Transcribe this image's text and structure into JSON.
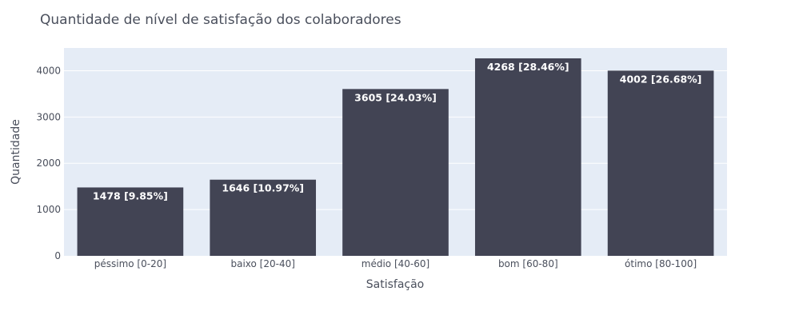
{
  "chart_data": {
    "type": "bar",
    "title": "Quantidade de nível de satisfação dos colaboradores",
    "xlabel": "Satisfação",
    "ylabel": "Quantidade",
    "categories": [
      "péssimo [0-20]",
      "baixo [20-40]",
      "médio [40-60]",
      "bom [60-80]",
      "ótimo [80-100]"
    ],
    "values": [
      1478,
      1646,
      3605,
      4268,
      4002
    ],
    "data_labels": [
      "1478 [9.85%]",
      "1646 [10.97%]",
      "3605 [24.03%]",
      "4268 [28.46%]",
      "4002 [26.68%]"
    ],
    "yticks": [
      0,
      1000,
      2000,
      3000,
      4000
    ],
    "ylim": [
      0,
      4492
    ],
    "grid": true,
    "colors": {
      "bar": "#424454",
      "plot_background": "#e5ecf6",
      "grid": "#ffffff",
      "text": "#4a4f5c",
      "label": "#ffffff"
    }
  }
}
